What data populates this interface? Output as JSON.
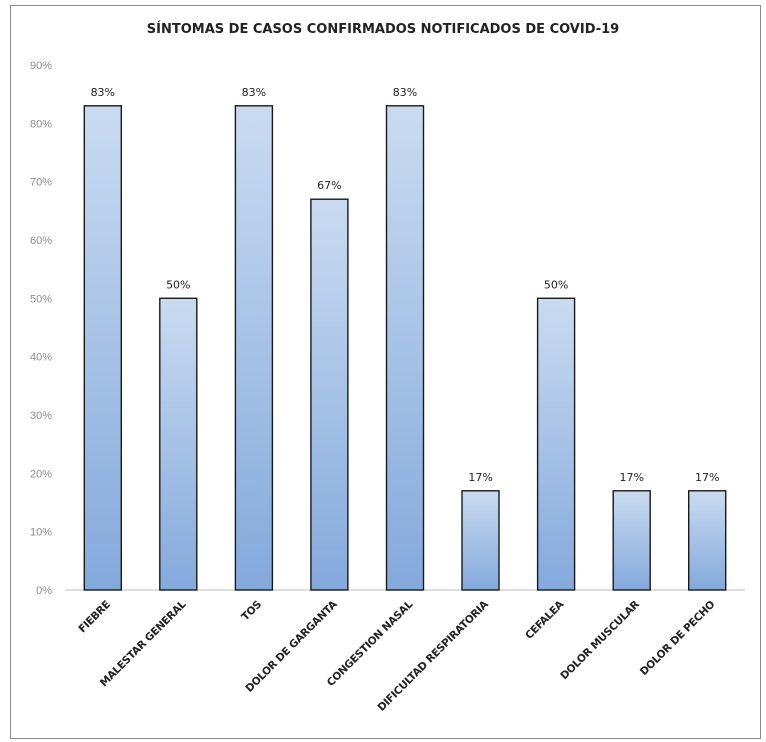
{
  "chart_data": {
    "type": "bar",
    "title": "SÍNTOMAS DE CASOS CONFIRMADOS NOTIFICADOS DE COVID-19",
    "xlabel": "",
    "ylabel": "",
    "categories": [
      "FIEBRE",
      "MALESTAR GENERAL",
      "TOS",
      "DOLOR DE GARGANTA",
      "CONGESTION NASAL",
      "DIFICULTAD RESPIRATORIA",
      "CEFALEA",
      "DOLOR MUSCULAR",
      "DOLOR DE PECHO"
    ],
    "values": [
      83,
      50,
      83,
      67,
      83,
      17,
      50,
      17,
      17
    ],
    "data_labels": [
      "83%",
      "50%",
      "83%",
      "67%",
      "83%",
      "17%",
      "50%",
      "17%",
      "17%"
    ],
    "ylim": [
      0,
      90
    ],
    "yticks": [
      0,
      10,
      20,
      30,
      40,
      50,
      60,
      70,
      80,
      90
    ],
    "ytick_labels": [
      "0%",
      "10%",
      "20%",
      "30%",
      "40%",
      "50%",
      "60%",
      "70%",
      "80%",
      "90%"
    ],
    "grid": false,
    "legend": "none",
    "colors": {
      "bar_gradient_top": "#c9dbf1",
      "bar_gradient_bottom": "#84a9dc",
      "bar_outline": "#1a1a1a",
      "axis_text": "#8c8c8c"
    }
  }
}
